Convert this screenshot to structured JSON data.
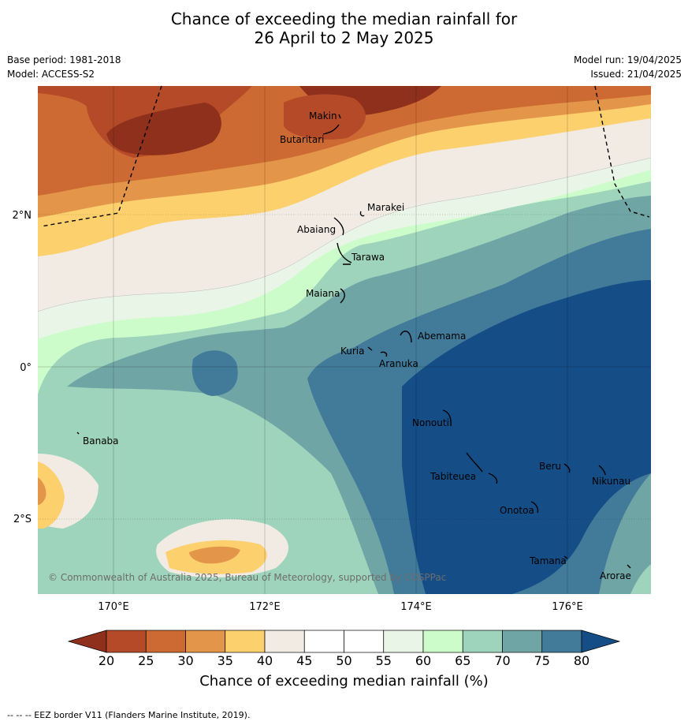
{
  "title_line1": "Chance of exceeding the median rainfall for",
  "title_line2": "26 April to 2 May 2025",
  "base_period": "Base period: 1981-2018",
  "model": "Model: ACCESS-S2",
  "model_run": "Model run: 19/04/2025",
  "issued": "Issued: 21/04/2025",
  "copyright": "© Commonwealth of Australia 2025, Bureau of Meteorology, supported by COSPPac",
  "lon_ticks": [
    "170°E",
    "172°E",
    "174°E",
    "176°E"
  ],
  "lat_ticks": [
    "2°N",
    "0°",
    "2°S"
  ],
  "places": [
    "Makin",
    "Butaritari",
    "Marakei",
    "Abaiang",
    "Tarawa",
    "Maiana",
    "Abemama",
    "Kuria",
    "Aranuka",
    "Banaba",
    "Nonouti",
    "Beru",
    "Nikunau",
    "Tabiteuea",
    "Onotoa",
    "Tamana",
    "Arorae"
  ],
  "colorbar": {
    "title": "Chance of exceeding median rainfall (%)",
    "ticks": [
      "20",
      "25",
      "30",
      "35",
      "40",
      "45",
      "50",
      "55",
      "60",
      "65",
      "70",
      "75",
      "80"
    ],
    "colors": [
      "#8f301c",
      "#b44a27",
      "#cd6a33",
      "#e3954a",
      "#fdd06e",
      "#f1ebe4",
      "#ffffff",
      "#ffffff",
      "#e9f5e6",
      "#ccfcc9",
      "#9ed4bb",
      "#70a5a6",
      "#427a9a",
      "#154d86"
    ]
  },
  "footer": "-- -- -- EEZ border V11 (Flanders Marine Institute, 2019)."
}
